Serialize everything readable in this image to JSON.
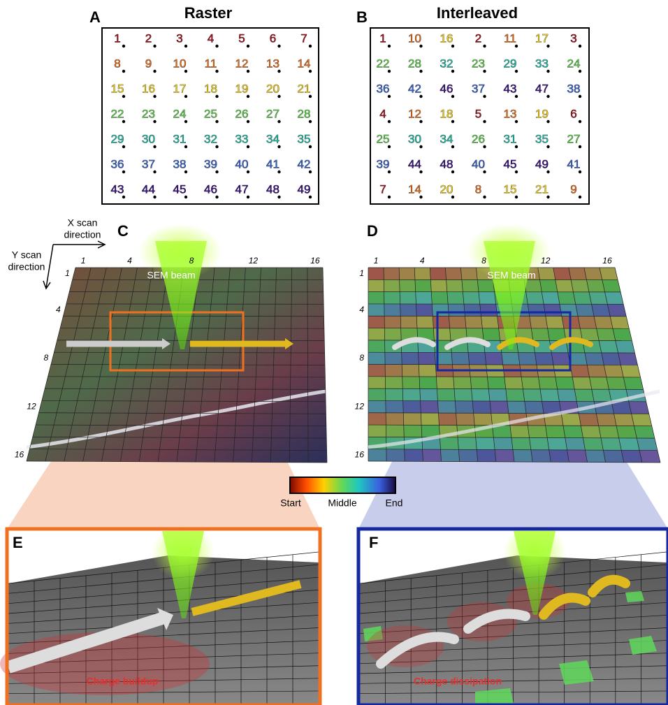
{
  "panels": {
    "A": {
      "letter": "A",
      "title": "Raster",
      "order": [
        [
          1,
          2,
          3,
          4,
          5,
          6,
          7
        ],
        [
          8,
          9,
          10,
          11,
          12,
          13,
          14
        ],
        [
          15,
          16,
          17,
          18,
          19,
          20,
          21
        ],
        [
          22,
          23,
          24,
          25,
          26,
          27,
          28
        ],
        [
          29,
          30,
          31,
          32,
          33,
          34,
          35
        ],
        [
          36,
          37,
          38,
          39,
          40,
          41,
          42
        ],
        [
          43,
          44,
          45,
          46,
          47,
          48,
          49
        ]
      ]
    },
    "B": {
      "letter": "B",
      "title": "Interleaved",
      "order": [
        [
          1,
          10,
          16,
          2,
          11,
          17,
          3
        ],
        [
          22,
          28,
          32,
          23,
          29,
          33,
          24
        ],
        [
          36,
          42,
          46,
          37,
          43,
          47,
          38
        ],
        [
          4,
          12,
          18,
          5,
          13,
          19,
          6
        ],
        [
          25,
          30,
          34,
          26,
          31,
          35,
          27
        ],
        [
          39,
          44,
          48,
          40,
          45,
          49,
          41
        ],
        [
          7,
          14,
          20,
          8,
          15,
          21,
          9
        ]
      ]
    },
    "C": {
      "letter": "C",
      "x_direction": [
        "X scan",
        "direction"
      ],
      "y_direction": [
        "Y scan",
        "direction"
      ],
      "beam": "SEM beam",
      "x_ticks": [
        1,
        4,
        8,
        12,
        16
      ],
      "y_ticks": [
        1,
        4,
        8,
        12,
        16
      ]
    },
    "D": {
      "letter": "D",
      "beam": "SEM beam",
      "x_ticks": [
        1,
        4,
        8,
        12,
        16
      ],
      "y_ticks": [
        1,
        4,
        8,
        12,
        16
      ]
    },
    "colorbar": {
      "labels": [
        "Start",
        "Middle",
        "End"
      ]
    },
    "E": {
      "letter": "E",
      "caption": "Charge buildup"
    },
    "F": {
      "letter": "F",
      "caption": "Charge dissipation"
    }
  }
}
